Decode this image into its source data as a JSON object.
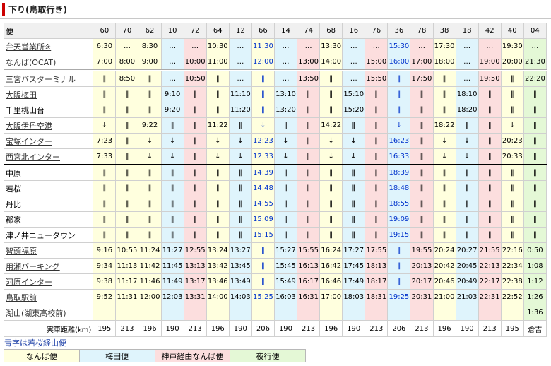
{
  "title": "下り(鳥取行き)",
  "header_label": "便",
  "columns": [
    {
      "no": "60",
      "svc": "namba"
    },
    {
      "no": "70",
      "svc": "namba"
    },
    {
      "no": "62",
      "svc": "namba"
    },
    {
      "no": "10",
      "svc": "umeda"
    },
    {
      "no": "72",
      "svc": "kobe"
    },
    {
      "no": "64",
      "svc": "namba"
    },
    {
      "no": "12",
      "svc": "umeda"
    },
    {
      "no": "66",
      "svc": "namba"
    },
    {
      "no": "14",
      "svc": "umeda"
    },
    {
      "no": "74",
      "svc": "kobe"
    },
    {
      "no": "68",
      "svc": "namba"
    },
    {
      "no": "16",
      "svc": "umeda"
    },
    {
      "no": "76",
      "svc": "kobe"
    },
    {
      "no": "36",
      "svc": "umeda"
    },
    {
      "no": "78",
      "svc": "kobe"
    },
    {
      "no": "38",
      "svc": "namba"
    },
    {
      "no": "18",
      "svc": "umeda"
    },
    {
      "no": "42",
      "svc": "kobe"
    },
    {
      "no": "40",
      "svc": "namba"
    },
    {
      "no": "04",
      "svc": "night"
    }
  ],
  "rows": [
    {
      "station": "弁天営業所※",
      "link": true,
      "times": [
        "6:30",
        "…",
        "8:30",
        "…",
        "…",
        "10:30",
        "…",
        "11:30",
        "…",
        "…",
        "13:30",
        "…",
        "…",
        "15:30",
        "…",
        "17:30",
        "…",
        "…",
        "19:30",
        "…"
      ]
    },
    {
      "station": "なんば(OCAT)",
      "link": true,
      "times": [
        "7:00",
        "8:00",
        "9:00",
        "…",
        "10:00",
        "11:00",
        "…",
        "12:00",
        "…",
        "13:00",
        "14:00",
        "…",
        "15:00",
        "16:00",
        "17:00",
        "18:00",
        "…",
        "19:00",
        "20:00",
        "21:30"
      ]
    },
    {
      "station": "三宮バスターミナル",
      "link": true,
      "times": [
        "‖",
        "8:50",
        "‖",
        "…",
        "10:50",
        "‖",
        "…",
        "‖",
        "…",
        "13:50",
        "‖",
        "…",
        "15:50",
        "‖",
        "17:50",
        "‖",
        "…",
        "19:50",
        "‖",
        "22:20"
      ]
    },
    {
      "station": "大阪梅田",
      "link": true,
      "times": [
        "‖",
        "‖",
        "‖",
        "9:10",
        "‖",
        "‖",
        "11:10",
        "‖",
        "13:10",
        "‖",
        "‖",
        "15:10",
        "‖",
        "‖",
        "‖",
        "‖",
        "18:10",
        "‖",
        "‖",
        "‖"
      ]
    },
    {
      "station": "千里桃山台",
      "link": false,
      "times": [
        "‖",
        "‖",
        "‖",
        "9:20",
        "‖",
        "‖",
        "11:20",
        "‖",
        "13:20",
        "‖",
        "‖",
        "15:20",
        "‖",
        "‖",
        "‖",
        "‖",
        "18:20",
        "‖",
        "‖",
        "‖"
      ]
    },
    {
      "station": "大阪伊丹空港",
      "link": true,
      "times": [
        "↓",
        "‖",
        "9:22",
        "‖",
        "‖",
        "11:22",
        "‖",
        "↓",
        "‖",
        "‖",
        "14:22",
        "‖",
        "‖",
        "↓",
        "‖",
        "18:22",
        "‖",
        "‖",
        "↓",
        "‖"
      ]
    },
    {
      "station": "宝塚インター",
      "link": true,
      "times": [
        "7:23",
        "‖",
        "↓",
        "↓",
        "‖",
        "↓",
        "↓",
        "12:23",
        "↓",
        "‖",
        "↓",
        "↓",
        "‖",
        "16:23",
        "‖",
        "↓",
        "↓",
        "‖",
        "20:23",
        "‖"
      ]
    },
    {
      "station": "西宮北インター",
      "link": true,
      "times": [
        "7:33",
        "‖",
        "↓",
        "↓",
        "‖",
        "↓",
        "↓",
        "12:33",
        "↓",
        "‖",
        "↓",
        "↓",
        "‖",
        "16:33",
        "‖",
        "↓",
        "↓",
        "‖",
        "20:33",
        "‖"
      ]
    },
    {
      "station": "中原",
      "link": false,
      "times": [
        "‖",
        "‖",
        "‖",
        "‖",
        "‖",
        "‖",
        "‖",
        "14:39",
        "‖",
        "‖",
        "‖",
        "‖",
        "‖",
        "18:39",
        "‖",
        "‖",
        "‖",
        "‖",
        "‖",
        "‖"
      ]
    },
    {
      "station": "若桜",
      "link": false,
      "times": [
        "‖",
        "‖",
        "‖",
        "‖",
        "‖",
        "‖",
        "‖",
        "14:48",
        "‖",
        "‖",
        "‖",
        "‖",
        "‖",
        "18:48",
        "‖",
        "‖",
        "‖",
        "‖",
        "‖",
        "‖"
      ]
    },
    {
      "station": "丹比",
      "link": false,
      "times": [
        "‖",
        "‖",
        "‖",
        "‖",
        "‖",
        "‖",
        "‖",
        "14:55",
        "‖",
        "‖",
        "‖",
        "‖",
        "‖",
        "18:55",
        "‖",
        "‖",
        "‖",
        "‖",
        "‖",
        "‖"
      ]
    },
    {
      "station": "郡家",
      "link": false,
      "times": [
        "‖",
        "‖",
        "‖",
        "‖",
        "‖",
        "‖",
        "‖",
        "15:09",
        "‖",
        "‖",
        "‖",
        "‖",
        "‖",
        "19:09",
        "‖",
        "‖",
        "‖",
        "‖",
        "‖",
        "‖"
      ]
    },
    {
      "station": "津ノ井ニュータウン",
      "link": false,
      "times": [
        "‖",
        "‖",
        "‖",
        "‖",
        "‖",
        "‖",
        "‖",
        "15:15",
        "‖",
        "‖",
        "‖",
        "‖",
        "‖",
        "19:15",
        "‖",
        "‖",
        "‖",
        "‖",
        "‖",
        "‖"
      ]
    },
    {
      "station": "智頭福原",
      "link": true,
      "times": [
        "9:16",
        "10:55",
        "11:24",
        "11:27",
        "12:55",
        "13:24",
        "13:27",
        "‖",
        "15:27",
        "15:55",
        "16:24",
        "17:27",
        "17:55",
        "‖",
        "19:55",
        "20:24",
        "20:27",
        "21:55",
        "22:16",
        "0:50"
      ]
    },
    {
      "station": "用瀬パーキング",
      "link": true,
      "times": [
        "9:34",
        "11:13",
        "11:42",
        "11:45",
        "13:13",
        "13:42",
        "13:45",
        "‖",
        "15:45",
        "16:13",
        "16:42",
        "17:45",
        "18:13",
        "‖",
        "20:13",
        "20:42",
        "20:45",
        "22:13",
        "22:34",
        "1:08"
      ]
    },
    {
      "station": "河原インター",
      "link": true,
      "times": [
        "9:38",
        "11:17",
        "11:46",
        "11:49",
        "13:17",
        "13:46",
        "13:49",
        "‖",
        "15:49",
        "16:17",
        "16:46",
        "17:49",
        "18:17",
        "‖",
        "20:17",
        "20:46",
        "20:49",
        "22:17",
        "22:38",
        "1:12"
      ]
    },
    {
      "station": "鳥取駅前",
      "link": true,
      "times": [
        "9:52",
        "11:31",
        "12:00",
        "12:03",
        "13:31",
        "14:00",
        "14:03",
        "15:25",
        "16:03",
        "16:31",
        "17:00",
        "18:03",
        "18:31",
        "19:25",
        "20:31",
        "21:00",
        "21:03",
        "22:31",
        "22:52",
        "1:26"
      ]
    },
    {
      "station": "湖山(湖東高校前)",
      "link": true,
      "times": [
        "",
        "",
        "",
        "",
        "",
        "",
        "",
        "",
        "",
        "",
        "",
        "",
        "",
        "",
        "",
        "",
        "",
        "",
        "",
        "1:36"
      ]
    }
  ],
  "distance_label": "実車距離(km)",
  "distances": [
    "195",
    "213",
    "196",
    "190",
    "213",
    "196",
    "190",
    "206",
    "190",
    "213",
    "196",
    "190",
    "213",
    "206",
    "213",
    "196",
    "190",
    "213",
    "195",
    "倉吉"
  ],
  "note": "青字は若桜経由便",
  "legend": [
    {
      "label": "なんば便",
      "color": "#ffffde"
    },
    {
      "label": "梅田便",
      "color": "#dff4fc"
    },
    {
      "label": "神戸経由なんば便",
      "color": "#fcdede"
    },
    {
      "label": "夜行便",
      "color": "#e4f8d6"
    }
  ],
  "colors": {
    "namba": "#ffffde",
    "umeda": "#dff4fc",
    "kobe": "#fcdede",
    "night": "#e4f8d6",
    "accent_red": "#cc0000",
    "wakasa_blue": "#0033cc"
  }
}
